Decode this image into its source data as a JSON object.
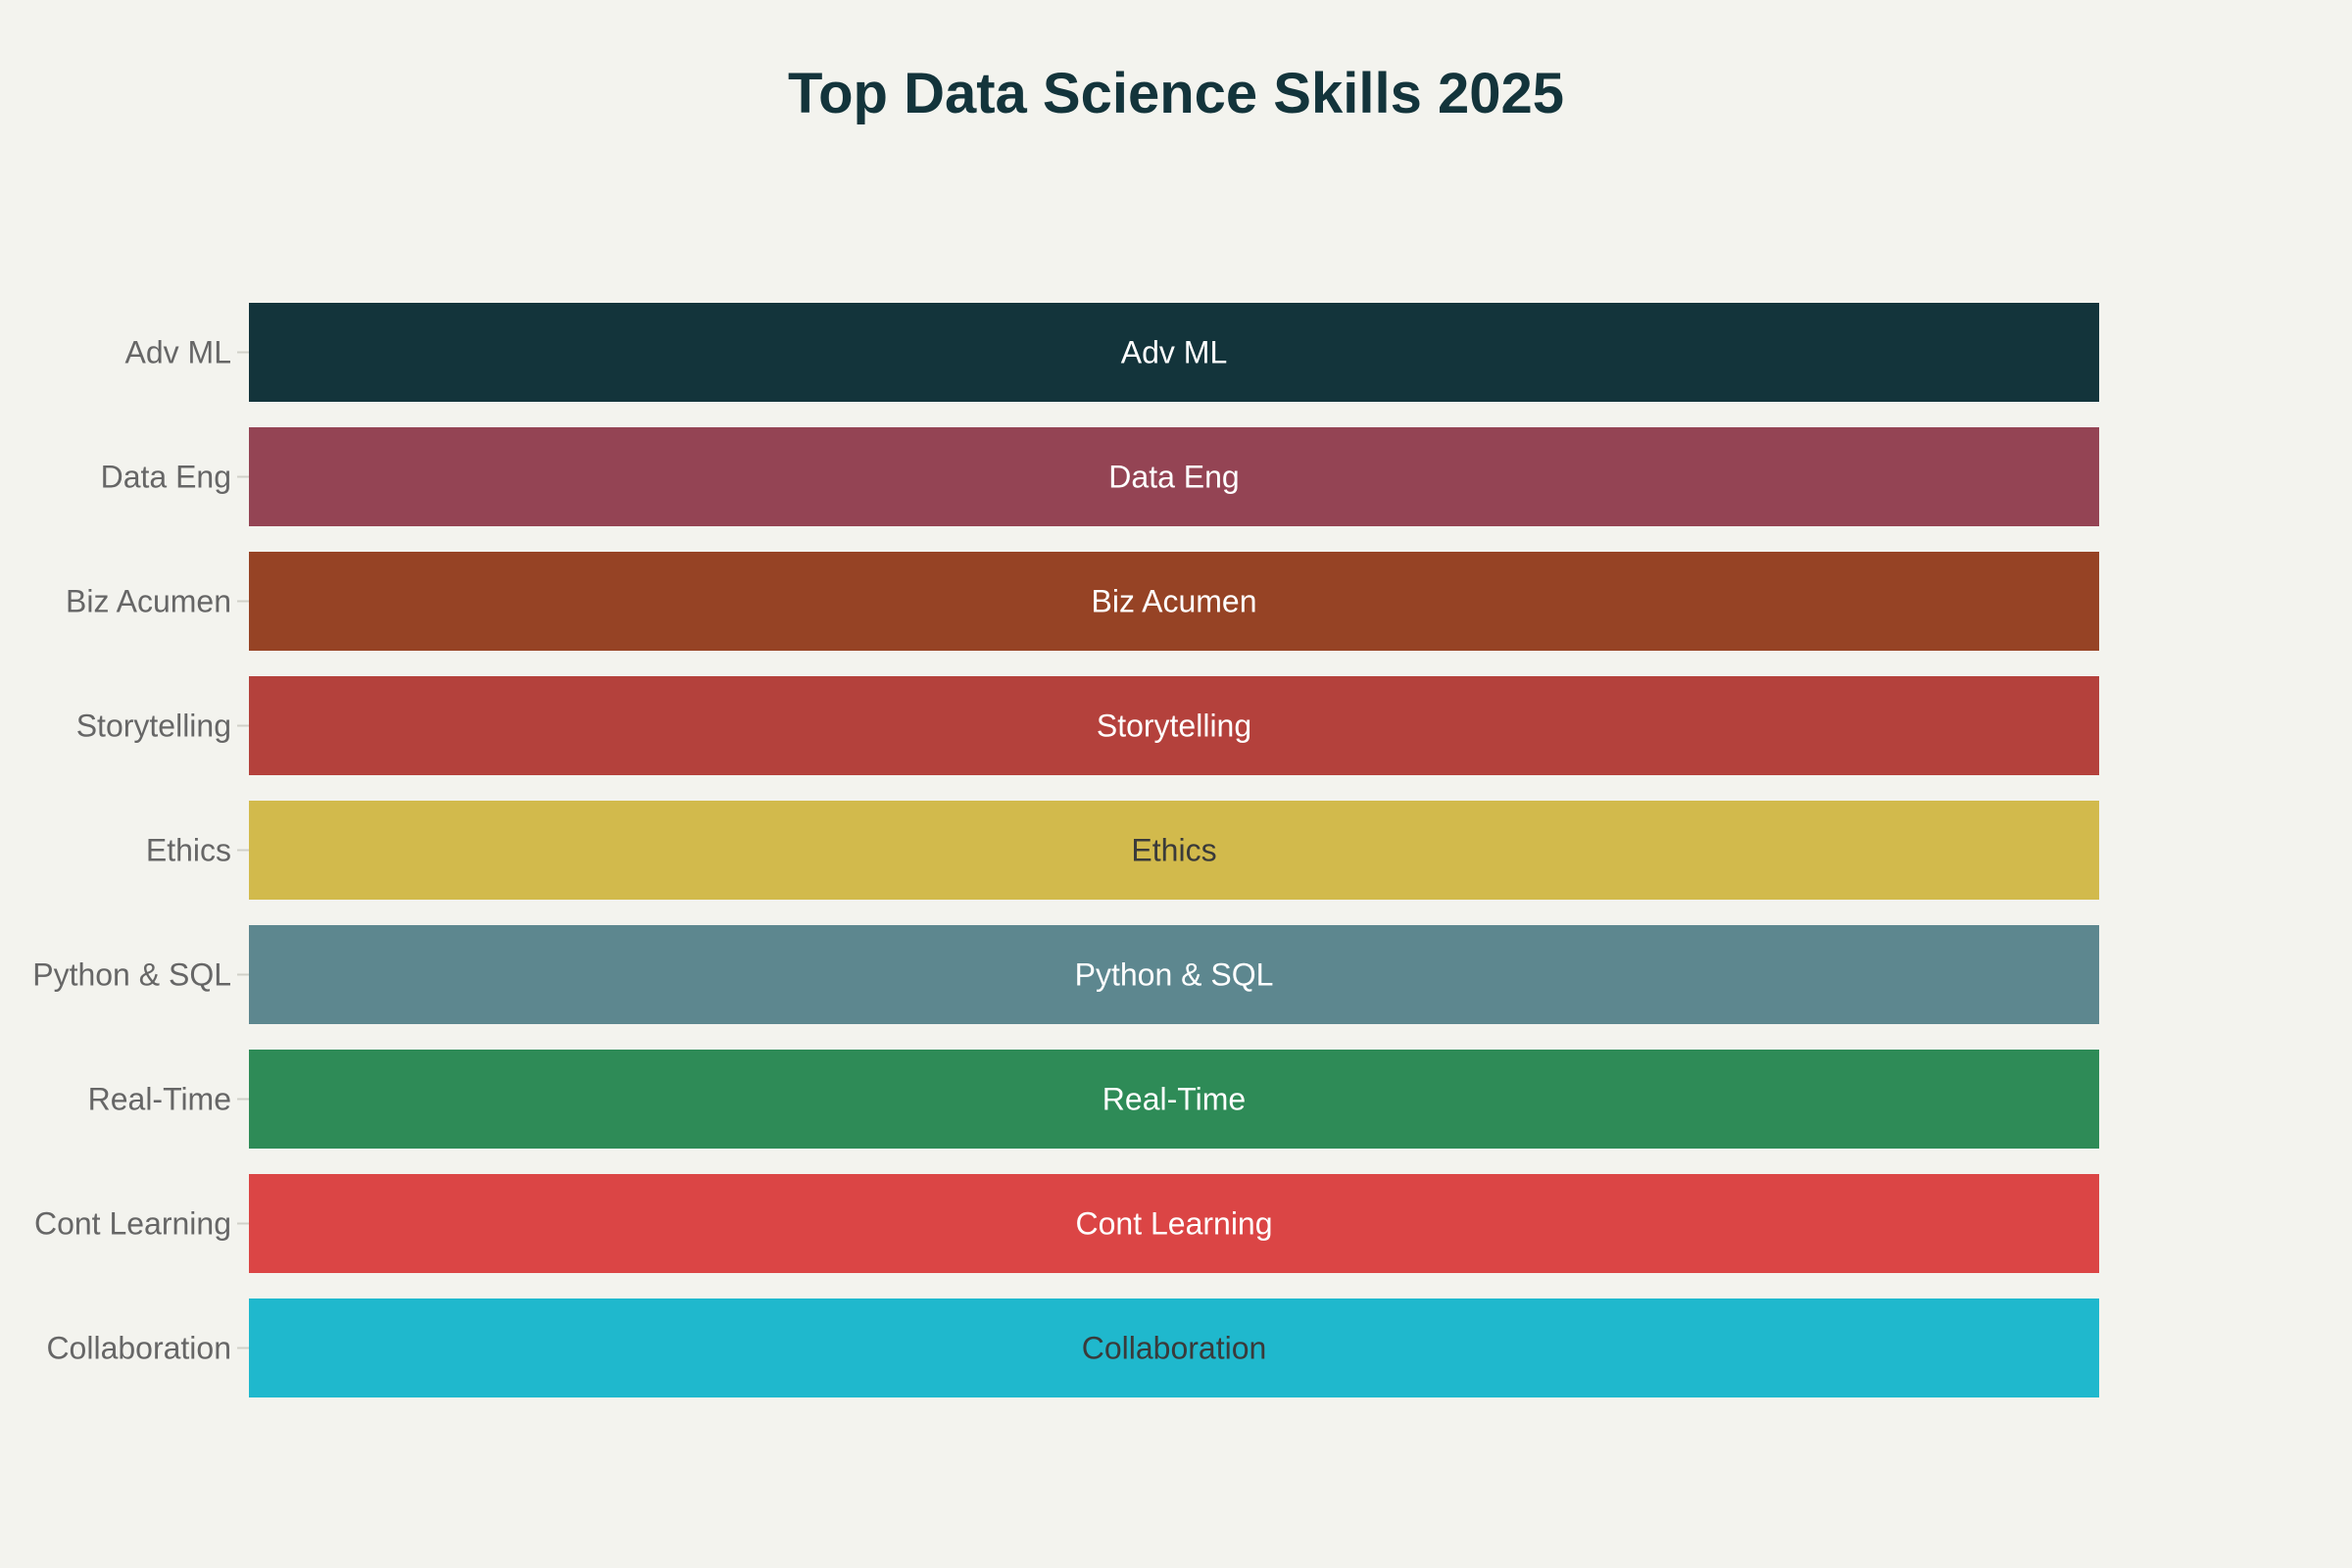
{
  "chart_data": {
    "type": "bar",
    "orientation": "horizontal",
    "title": "Top Data Science Skills 2025",
    "xlabel": "",
    "ylabel": "",
    "categories": [
      "Adv ML",
      "Data Eng",
      "Biz Acumen",
      "Storytelling",
      "Ethics",
      "Python & SQL",
      "Real-Time",
      "Cont Learning",
      "Collaboration"
    ],
    "values": [
      1,
      1,
      1,
      1,
      1,
      1,
      1,
      1,
      1
    ],
    "bar_labels": [
      "Adv ML",
      "Data Eng",
      "Biz Acumen",
      "Storytelling",
      "Ethics",
      "Python & SQL",
      "Real-Time",
      "Cont Learning",
      "Collaboration"
    ],
    "colors": [
      "#13343b",
      "#944454",
      "#964325",
      "#b4413c",
      "#d2ba4c",
      "#5d878f",
      "#2e8b57",
      "#db4545",
      "#1fb8cd"
    ],
    "label_colors": [
      "#ffffff",
      "#ffffff",
      "#ffffff",
      "#ffffff",
      "#3a3a3a",
      "#ffffff",
      "#ffffff",
      "#ffffff",
      "#3a3a3a"
    ],
    "xlim": [
      0,
      1
    ],
    "grid": false,
    "legend": "none"
  }
}
